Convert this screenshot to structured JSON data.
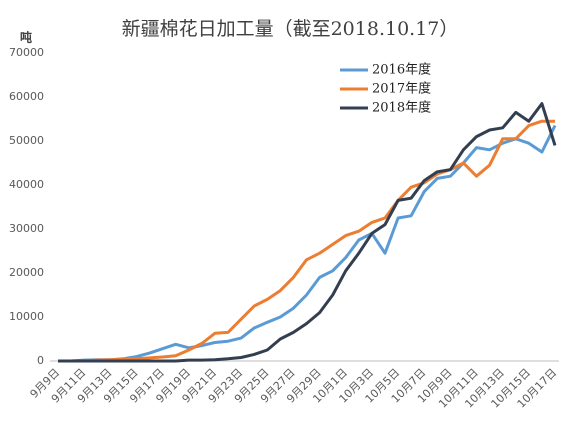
{
  "chart_data": {
    "type": "line",
    "title": "新疆棉花日加工量（截至2018.10.17）",
    "y_label": "吨",
    "categories": [
      "9月9日",
      null,
      "9月11日",
      null,
      "9月13日",
      null,
      "9月15日",
      null,
      "9月17日",
      null,
      "9月19日",
      null,
      "9月21日",
      null,
      "9月23日",
      null,
      "9月25日",
      null,
      "9月27日",
      null,
      "9月29日",
      null,
      "10月1日",
      null,
      "10月3日",
      null,
      "10月5日",
      null,
      "10月7日",
      null,
      "10月9日",
      null,
      "10月11日",
      null,
      "10月13日",
      null,
      "10月15日",
      null,
      "10月17日"
    ],
    "series": [
      {
        "name": "2016年度",
        "color": "#5b9bd5",
        "values": [
          0,
          0,
          200,
          300,
          300,
          500,
          1000,
          1800,
          2800,
          3800,
          3000,
          3500,
          4200,
          4500,
          5200,
          7500,
          8800,
          10000,
          12000,
          15000,
          19000,
          20500,
          23500,
          27500,
          29000,
          24500,
          32500,
          33000,
          38500,
          41500,
          42000,
          45000,
          48500,
          48000,
          49500,
          50500,
          49500,
          47500,
          53500
        ]
      },
      {
        "name": "2017年度",
        "color": "#ed7d31",
        "values": [
          0,
          0,
          100,
          200,
          300,
          400,
          500,
          700,
          900,
          1200,
          2500,
          4000,
          6300,
          6500,
          9500,
          12500,
          14000,
          16000,
          19000,
          23000,
          24500,
          26500,
          28500,
          29500,
          31500,
          32500,
          36500,
          39500,
          40500,
          42500,
          43500,
          45000,
          42000,
          44500,
          50500,
          50500,
          53500,
          54500,
          54500
        ]
      },
      {
        "name": "2018年度",
        "color": "#333f50",
        "values": [
          0,
          0,
          0,
          0,
          0,
          0,
          0,
          0,
          0,
          0,
          200,
          200,
          300,
          500,
          800,
          1500,
          2500,
          5000,
          6500,
          8500,
          11000,
          15000,
          20500,
          24500,
          29000,
          31000,
          36500,
          37000,
          41000,
          43000,
          43500,
          48000,
          51000,
          52500,
          53000,
          56500,
          54500,
          58500,
          49000
        ]
      }
    ],
    "ylim": [
      0,
      70000
    ],
    "yticks": [
      0,
      10000,
      20000,
      30000,
      40000,
      50000,
      60000,
      70000
    ],
    "grid": false,
    "legend": "top"
  }
}
